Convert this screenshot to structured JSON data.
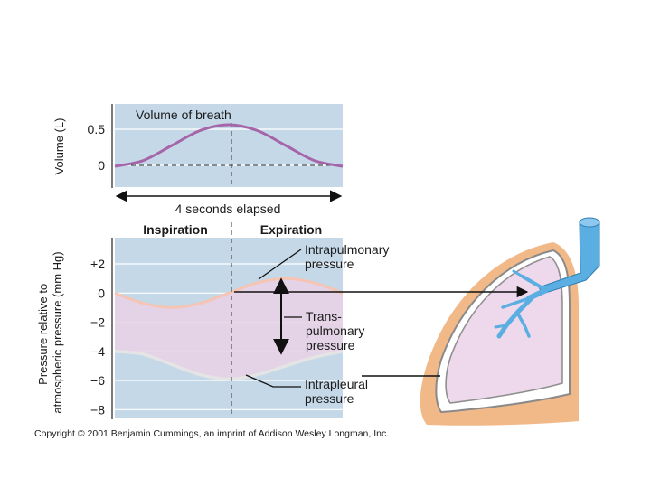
{
  "chart_data": [
    {
      "type": "line",
      "title": "Volume of breath",
      "ylabel": "Volume (L)",
      "xlabel": "4 seconds elapsed",
      "ylim": [
        -0.25,
        0.75
      ],
      "xlim": [
        0,
        4
      ],
      "yticks": [
        {
          "value": 0.5,
          "label": "0.5"
        },
        {
          "value": 0,
          "label": "0"
        }
      ],
      "series": [
        {
          "key": "volume",
          "color": "#a565a8",
          "x": [
            0,
            0.5,
            1,
            1.5,
            2,
            2.5,
            3,
            3.5,
            4
          ],
          "y": [
            0,
            0.07,
            0.25,
            0.43,
            0.5,
            0.43,
            0.25,
            0.07,
            0
          ]
        }
      ],
      "reference_lines": [
        {
          "axis": "y",
          "value": 0,
          "style": "dashed"
        },
        {
          "axis": "x",
          "value": 2,
          "style": "dashed"
        }
      ]
    },
    {
      "type": "area",
      "ylabel": "Pressure relative to atmospheric pressure (mm Hg)",
      "phase_labels": [
        "Inspiration",
        "Expiration"
      ],
      "ylim": [
        -8.6,
        3.8
      ],
      "xlim": [
        0,
        4
      ],
      "yticks": [
        {
          "value": 2,
          "label": "+2"
        },
        {
          "value": 0,
          "label": "0"
        },
        {
          "value": -2,
          "label": "−2"
        },
        {
          "value": -4,
          "label": "−4"
        },
        {
          "value": -6,
          "label": "−6"
        },
        {
          "value": -8,
          "label": "−8"
        }
      ],
      "series": [
        {
          "key": "intrapulmonary",
          "color": "#f6c4b2",
          "x": [
            0,
            0.5,
            1,
            1.5,
            2,
            2.5,
            3,
            3.5,
            4
          ],
          "y": [
            0,
            -0.7,
            -1,
            -0.7,
            0,
            0.7,
            1,
            0.7,
            0
          ]
        },
        {
          "key": "intrapleural",
          "color": "#e4e4e4",
          "x": [
            0,
            0.5,
            1,
            1.5,
            2,
            2.5,
            3,
            3.5,
            4
          ],
          "y": [
            -4,
            -4.2,
            -4.9,
            -5.6,
            -5.9,
            -5.6,
            -5,
            -4.4,
            -4
          ]
        }
      ],
      "annotations": {
        "intrapulmonary": [
          "Intrapulmonary",
          "pressure"
        ],
        "transpulmonary": [
          "Trans-",
          "pulmonary",
          "pressure"
        ],
        "intrapleural": [
          "Intrapleural",
          "pressure"
        ]
      },
      "reference_lines": [
        {
          "axis": "x",
          "value": 2,
          "style": "dashed"
        }
      ]
    }
  ],
  "footer": {
    "copyright": "Copyright © 2001 Benjamin Cummings, an imprint of Addison Wesley Longman, Inc."
  },
  "colors": {
    "panel_bg": "#c4d8e8",
    "fill_between": "#e8d3e6",
    "lung_fill": "#eed8ec",
    "chest_wall": "#f1b888",
    "bronchi": "#5aaee2"
  }
}
